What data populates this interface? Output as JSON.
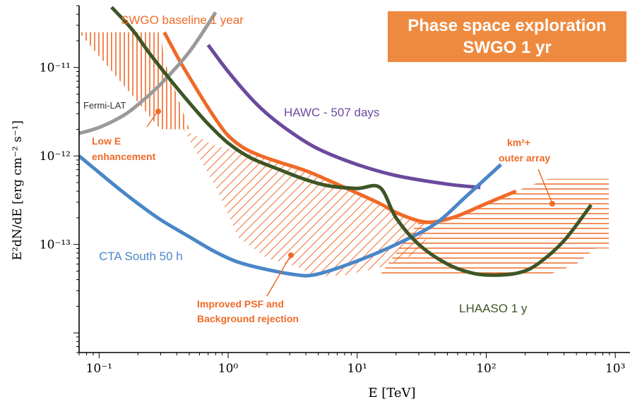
{
  "chart_data": {
    "type": "line",
    "title_lines": [
      "Phase space exploration",
      "SWGO 1 yr"
    ],
    "xlabel": "E [TeV]",
    "ylabel": "E²dN/dE [erg cm⁻² s⁻¹]",
    "xscale": "log",
    "yscale": "log",
    "xlim": [
      0.07,
      1300
    ],
    "ylim": [
      6e-15,
      5e-11
    ],
    "grid": false,
    "x_ticks": [
      {
        "value": 0.1,
        "label": "10⁻¹"
      },
      {
        "value": 1,
        "label": "10⁰"
      },
      {
        "value": 10,
        "label": "10¹"
      },
      {
        "value": 100,
        "label": "10²"
      },
      {
        "value": 1000,
        "label": "10³"
      }
    ],
    "y_ticks": [
      {
        "value": 1e-11,
        "label": "10⁻¹¹"
      },
      {
        "value": 1e-12,
        "label": "10⁻¹²"
      },
      {
        "value": 1e-13,
        "label": "10⁻¹³"
      }
    ],
    "series": [
      {
        "name": "SWGO baseline 1 year",
        "color": "#ef6a28",
        "x": [
          0.32,
          0.42,
          0.55,
          0.7,
          0.85,
          1.0,
          1.3,
          1.8,
          2.5,
          4.0,
          6.0,
          10,
          15,
          20,
          30,
          40,
          60,
          100,
          170
        ],
        "y": [
          2.5e-11,
          1.2e-11,
          6.2e-12,
          3.5e-12,
          2.3e-12,
          1.7e-12,
          1.25e-12,
          1e-12,
          8.5e-13,
          6.8e-13,
          5.3e-13,
          3.8e-13,
          2.9e-13,
          2.3e-13,
          1.85e-13,
          1.8e-13,
          2.1e-13,
          2.9e-13,
          4e-13
        ]
      },
      {
        "name": "Fermi-LAT",
        "color": "#9a9a9a",
        "x": [
          0.07,
          0.1,
          0.15,
          0.2,
          0.3,
          0.5,
          0.8
        ],
        "y": [
          1.8e-12,
          2.1e-12,
          2.8e-12,
          3.8e-12,
          6.5e-12,
          1.5e-11,
          4.2e-11
        ]
      },
      {
        "name": "HAWC - 507 days",
        "color": "#6b4a9e",
        "x": [
          0.7,
          1.0,
          1.5,
          2.0,
          3.0,
          5.0,
          10,
          20,
          50,
          90
        ],
        "y": [
          1.8e-11,
          9e-12,
          4.5e-12,
          3e-12,
          1.9e-12,
          1.2e-12,
          8e-13,
          6e-13,
          4.8e-13,
          4.4e-13
        ]
      },
      {
        "name": "CTA South 50 h",
        "color": "#4a86c8",
        "x": [
          0.07,
          0.1,
          0.15,
          0.2,
          0.3,
          0.5,
          0.8,
          1.2,
          2.0,
          3.5,
          4.5,
          6.0,
          10,
          20,
          40,
          70,
          130
        ],
        "y": [
          1e-12,
          6.5e-13,
          4e-13,
          2.9e-13,
          1.9e-13,
          1.22e-13,
          8.2e-14,
          6.3e-14,
          5.2e-14,
          4.5e-14,
          4.5e-14,
          5e-14,
          6.5e-14,
          1e-13,
          1.7e-13,
          3.5e-13,
          8e-13
        ]
      },
      {
        "name": "LHAASO 1 y",
        "color": "#3e5525",
        "x": [
          0.125,
          0.18,
          0.25,
          0.35,
          0.5,
          0.7,
          1.0,
          1.5,
          2.5,
          4.0,
          6.0,
          10,
          15,
          20,
          30,
          50,
          80,
          120,
          180,
          250,
          400,
          650
        ],
        "y": [
          4.8e-11,
          2.7e-11,
          1.4e-11,
          7.5e-12,
          4e-12,
          2.3e-12,
          1.4e-12,
          9.5e-13,
          7e-13,
          5.4e-13,
          4.6e-13,
          4.3e-13,
          4.4e-13,
          2e-13,
          1e-13,
          6e-14,
          4.7e-14,
          4.5e-14,
          4.8e-14,
          6e-14,
          1.1e-13,
          2.8e-13
        ]
      }
    ],
    "series_labels": [
      "SWGO baseline 1 year",
      "Fermi-LAT",
      "HAWC - 507 days",
      "CTA South 50 h",
      "LHAASO 1 y"
    ],
    "annotations": {
      "low_e_line1": "Low E",
      "low_e_line2": "enhancement",
      "psf_line1": "Improved PSF and",
      "psf_line2": "Background rejection",
      "outer_line1": "km²+",
      "outer_line2": "outer array"
    },
    "regions": [
      {
        "label": "Low E enhancement",
        "x": [
          0.07,
          0.3,
          0.32,
          0.5,
          0.3,
          0.07
        ],
        "y": [
          2.5e-11,
          2.5e-11,
          1.2e-11,
          2e-12,
          2e-12,
          2.5e-11
        ]
      },
      {
        "label": "Improved PSF and Background rejection",
        "x": [
          0.45,
          0.8,
          1.2,
          2.0,
          4.0,
          6.0,
          10,
          15,
          20,
          30,
          40,
          30,
          15,
          8,
          5,
          3.5,
          2.0,
          1.2,
          0.8,
          0.45
        ],
        "y": [
          2e-12,
          1.3e-12,
          1.15e-12,
          9.5e-13,
          6.8e-13,
          5.3e-13,
          3.8e-13,
          2.9e-13,
          2.3e-13,
          1.85e-13,
          1.8e-13,
          8e-14,
          5.5e-14,
          4.5e-14,
          4.3e-14,
          5.5e-14,
          7e-14,
          1.2e-13,
          4.5e-13,
          2e-12
        ]
      },
      {
        "label": "km²+ outer array",
        "x": [
          15,
          30,
          40,
          60,
          100,
          170,
          300,
          892,
          892,
          700,
          500,
          300,
          150,
          80,
          50,
          30,
          15
        ],
        "y": [
          4.5e-14,
          1.8e-13,
          1.8e-13,
          2.1e-13,
          2.9e-13,
          4e-13,
          5.5e-13,
          5.5e-13,
          9e-14,
          9e-14,
          6e-14,
          4.5e-14,
          4.5e-14,
          4.5e-14,
          4.5e-14,
          4.5e-14,
          4.5e-14
        ]
      }
    ]
  }
}
